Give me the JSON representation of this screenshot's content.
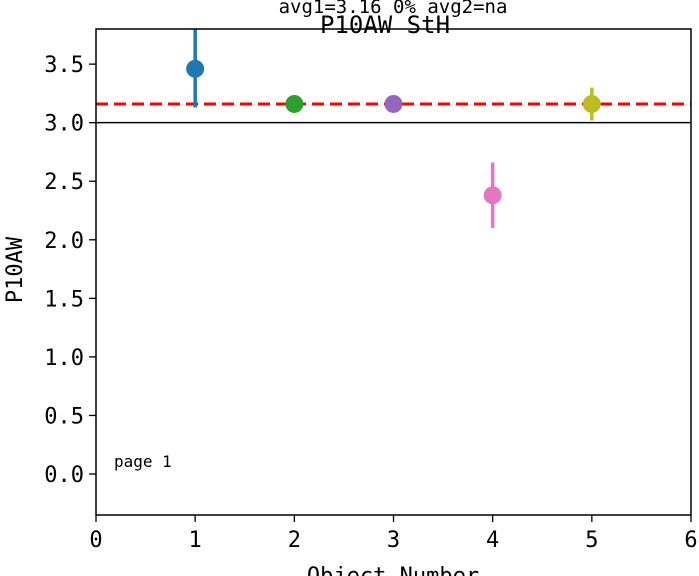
{
  "chart_data": {
    "type": "scatter",
    "title": "P10AW StH",
    "subtitle": "avg1=3.16 0% avg2=na",
    "xlabel": "Object Number",
    "ylabel": "P10AW",
    "xlim": [
      0,
      6
    ],
    "ylim": [
      -0.35,
      3.8
    ],
    "x_ticks": [
      "0",
      "1",
      "2",
      "3",
      "4",
      "5",
      "6"
    ],
    "y_ticks": [
      "0.0",
      "0.5",
      "1.0",
      "1.5",
      "2.0",
      "2.5",
      "3.0",
      "3.5"
    ],
    "grid": false,
    "points": [
      {
        "x": 1,
        "y": 3.46,
        "err_low": 3.13,
        "err_high": 3.8,
        "color": "#1f77b4"
      },
      {
        "x": 2,
        "y": 3.16,
        "err_low": 3.16,
        "err_high": 3.16,
        "color": "#2ca02c"
      },
      {
        "x": 3,
        "y": 3.16,
        "err_low": 3.16,
        "err_high": 3.16,
        "color": "#9467bd"
      },
      {
        "x": 4,
        "y": 2.38,
        "err_low": 2.1,
        "err_high": 2.66,
        "color": "#e377c2"
      },
      {
        "x": 5,
        "y": 3.16,
        "err_low": 3.02,
        "err_high": 3.3,
        "color": "#bcbd22"
      }
    ],
    "reference_line": {
      "y": 3.16,
      "color": "#ff0000",
      "style": "dashed"
    },
    "separator_line": {
      "y": 3.0,
      "color": "#000000"
    },
    "annotation": "page 1"
  }
}
